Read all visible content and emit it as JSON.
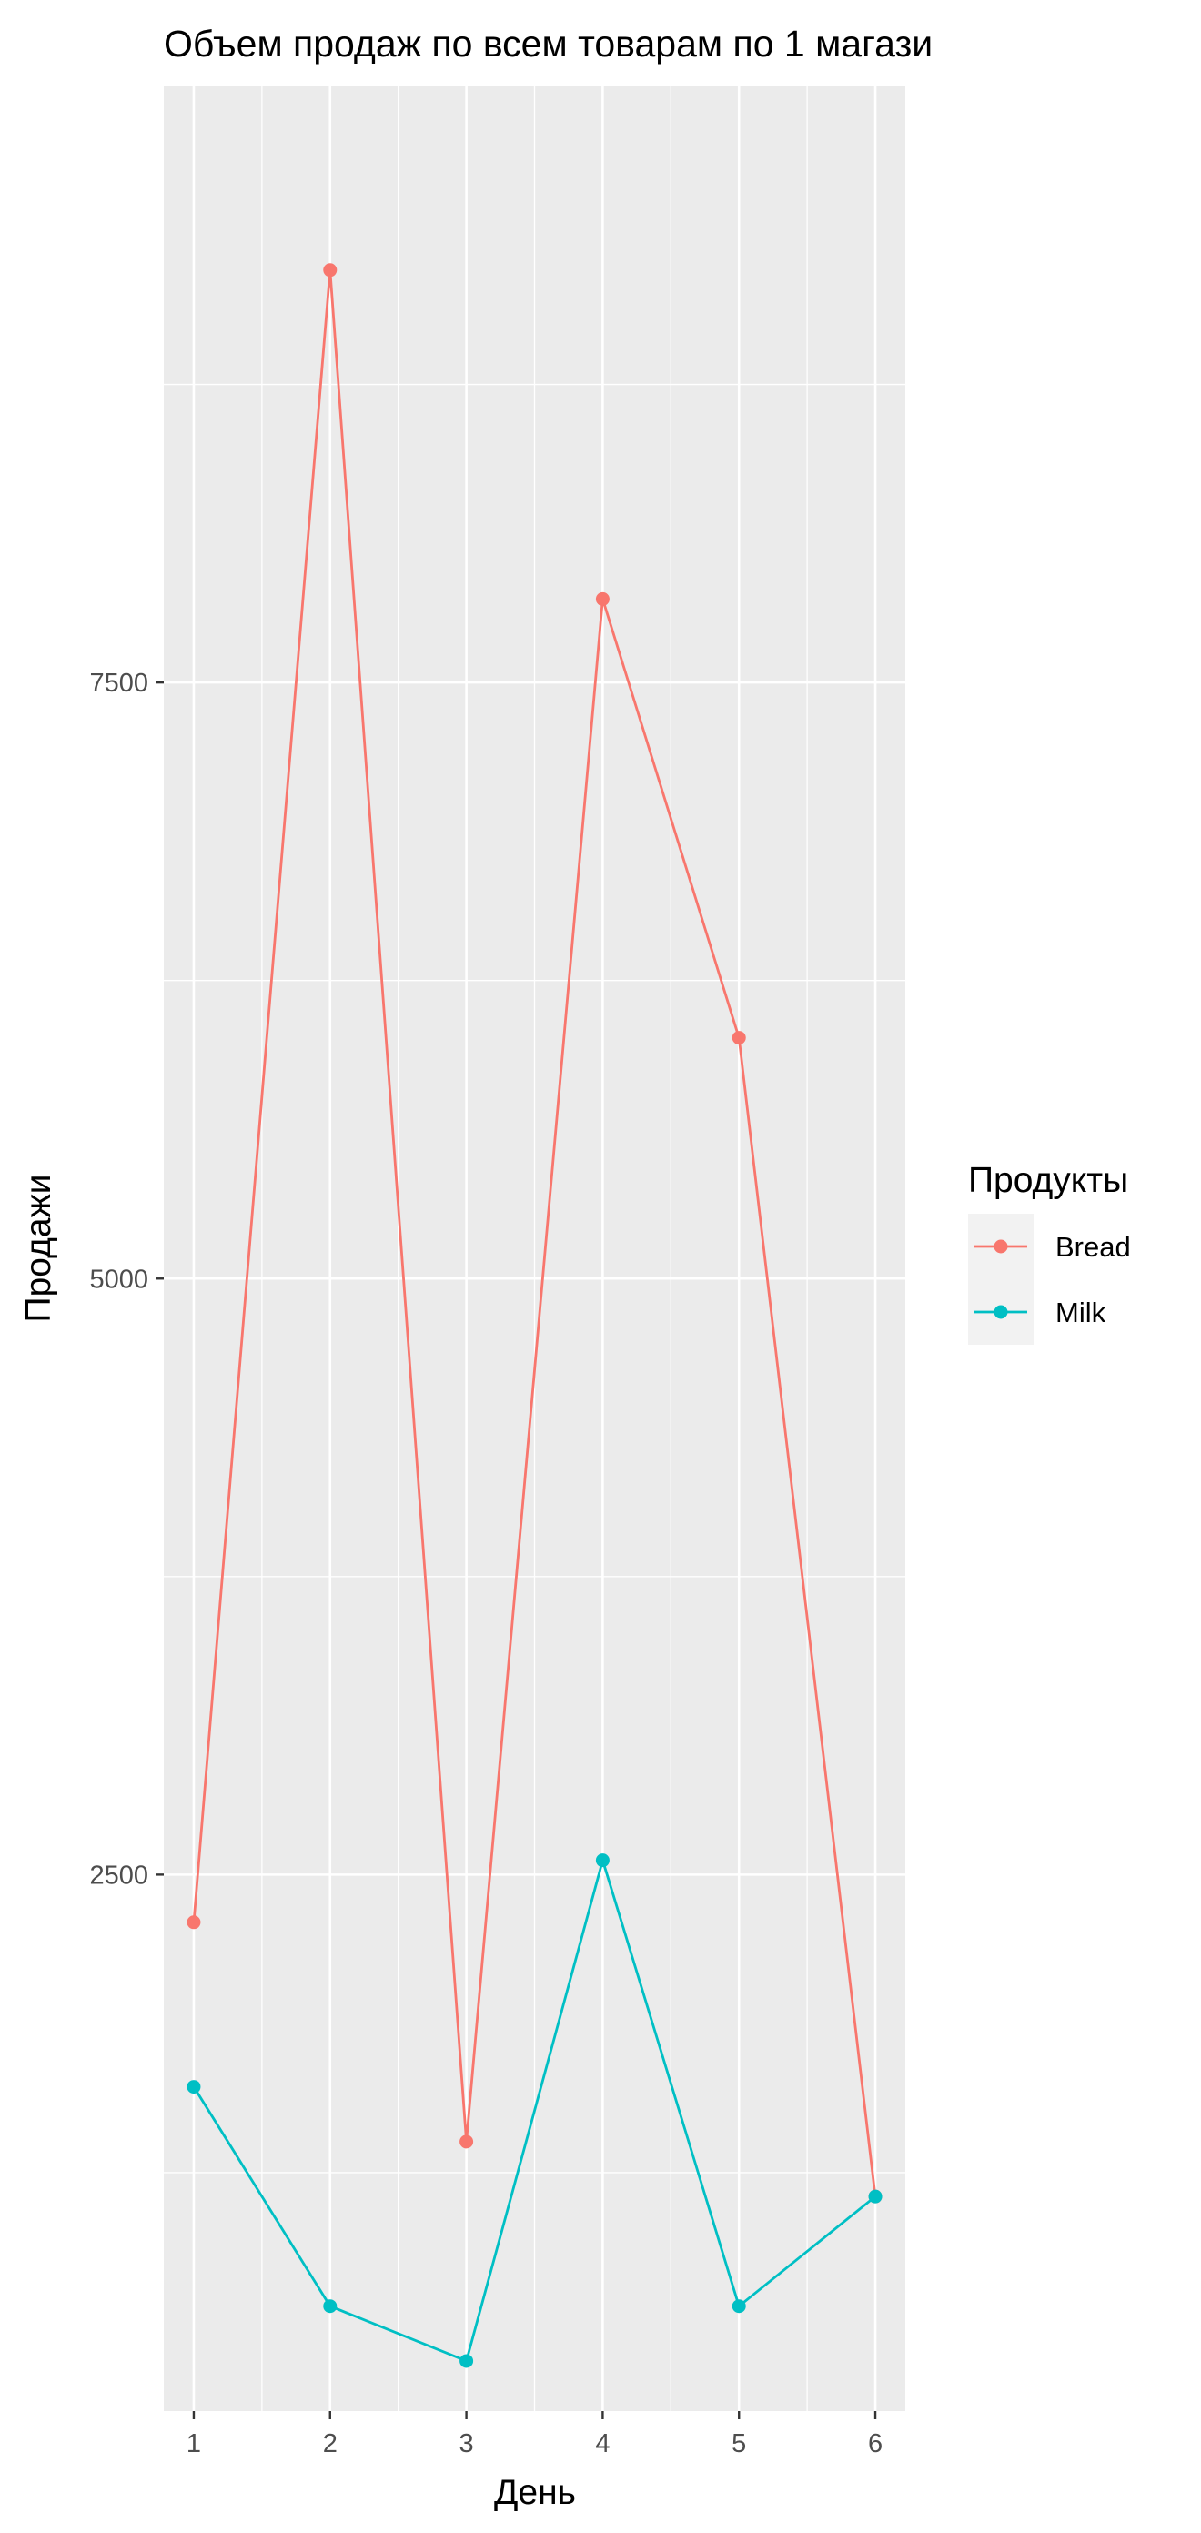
{
  "chart_data": {
    "type": "line",
    "title": "Объем продаж по всем товарам по 1 магази",
    "xlabel": "День",
    "ylabel": "Продажи",
    "x": [
      1,
      2,
      3,
      4,
      5,
      6
    ],
    "xlim": [
      0.78,
      6.22
    ],
    "ylim": [
      250,
      10000
    ],
    "x_ticks": [
      "1",
      "2",
      "3",
      "4",
      "5",
      "6"
    ],
    "y_ticks": [
      2500,
      5000,
      7500
    ],
    "y_tick_labels": [
      "2500",
      "5000",
      "7500"
    ],
    "grid": true,
    "legend": {
      "title": "Продукты",
      "position": "right"
    },
    "series": [
      {
        "name": "Bread",
        "color": "#F8766D",
        "values": [
          2300,
          9230,
          1380,
          7850,
          6010,
          1150
        ]
      },
      {
        "name": "Milk",
        "color": "#00BFC4",
        "values": [
          1610,
          690,
          460,
          2560,
          690,
          1150
        ]
      }
    ]
  }
}
